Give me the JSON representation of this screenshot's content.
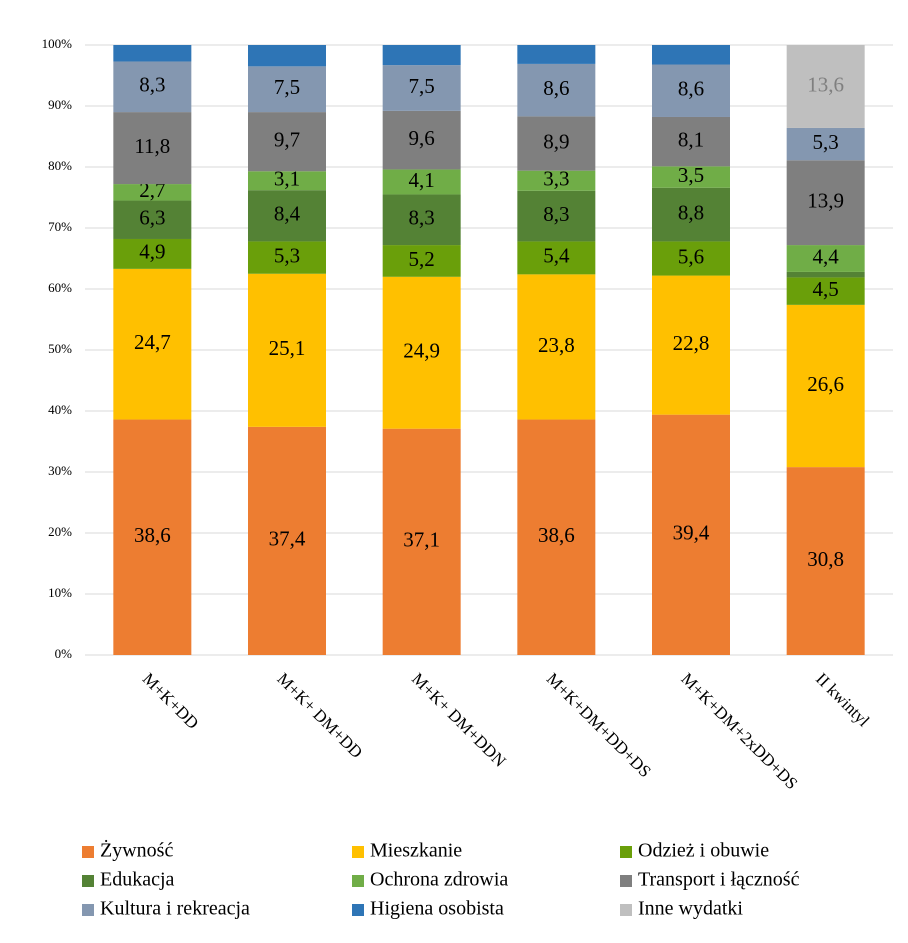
{
  "chart_data": {
    "type": "stacked_bar_100",
    "categories": [
      "M+K+DD",
      "M+K+ DM+DD",
      "M+K+ DM+DDN",
      "M+K+DM+DD+DS",
      "M+K+DM+2xDD+DS",
      "II kwintyl"
    ],
    "ylim": [
      0,
      100
    ],
    "yticks": [
      {
        "value": 0,
        "label": "0%"
      },
      {
        "value": 10,
        "label": "10%"
      },
      {
        "value": 20,
        "label": "20%"
      },
      {
        "value": 30,
        "label": "30%"
      },
      {
        "value": 40,
        "label": "40%"
      },
      {
        "value": 50,
        "label": "50%"
      },
      {
        "value": 60,
        "label": "60%"
      },
      {
        "value": 70,
        "label": "70%"
      },
      {
        "value": 80,
        "label": "80%"
      },
      {
        "value": 90,
        "label": "90%"
      },
      {
        "value": 100,
        "label": "100%"
      }
    ],
    "grid": true,
    "legend": "bottom",
    "series": [
      {
        "name": "Żywność",
        "color": "#ed7d31",
        "values": [
          38.6,
          37.4,
          37.1,
          38.6,
          39.4,
          30.8
        ],
        "value_labels": [
          "38,6",
          "37,4",
          "37,1",
          "38,6",
          "39,4",
          "30,8"
        ]
      },
      {
        "name": "Mieszkanie",
        "color": "#ffc000",
        "values": [
          24.7,
          25.1,
          24.9,
          23.8,
          22.8,
          26.6
        ],
        "value_labels": [
          "24,7",
          "25,1",
          "24,9",
          "23,8",
          "22,8",
          "26,6"
        ]
      },
      {
        "name": "Odzież i obuwie",
        "color": "#6a9f0a",
        "values": [
          4.9,
          5.3,
          5.2,
          5.4,
          5.6,
          4.5
        ],
        "value_labels": [
          "4,9",
          "5,3",
          "5,2",
          "5,4",
          "5,6",
          "4,5"
        ]
      },
      {
        "name": "Edukacja",
        "color": "#548235",
        "values": [
          6.3,
          8.4,
          8.3,
          8.3,
          8.8,
          0.9
        ],
        "value_labels": [
          "6,3",
          "8,4",
          "8,3",
          "8,3",
          "8,8",
          null
        ]
      },
      {
        "name": "Ochrona zdrowia",
        "color": "#70ad47",
        "values": [
          2.7,
          3.1,
          4.1,
          3.3,
          3.5,
          4.4
        ],
        "value_labels": [
          "2,7",
          "3,1",
          "4,1",
          "3,3",
          "3,5",
          "4,4"
        ]
      },
      {
        "name": "Transport i łączność",
        "color": "#7f7f7f",
        "values": [
          11.8,
          9.7,
          9.6,
          8.9,
          8.1,
          13.9
        ],
        "value_labels": [
          "11,8",
          "9,7",
          "9,6",
          "8,9",
          "8,1",
          "13,9"
        ]
      },
      {
        "name": "Kultura i rekreacja",
        "color": "#8497b0",
        "values": [
          8.3,
          7.5,
          7.5,
          8.6,
          8.6,
          5.3
        ],
        "value_labels": [
          "8,3",
          "7,5",
          "7,5",
          "8,6",
          "8,6",
          "5,3"
        ]
      },
      {
        "name": "Higiena osobista",
        "color": "#2e75b6",
        "values": [
          2.7,
          3.5,
          3.3,
          3.1,
          3.2,
          null
        ],
        "value_labels": [
          null,
          null,
          null,
          null,
          null,
          null
        ]
      },
      {
        "name": "Inne wydatki",
        "color": "#bfbfbf",
        "label_color": "#7f7f7f",
        "values": [
          null,
          null,
          null,
          null,
          null,
          13.6
        ],
        "value_labels": [
          null,
          null,
          null,
          null,
          null,
          "13,6"
        ]
      }
    ]
  }
}
